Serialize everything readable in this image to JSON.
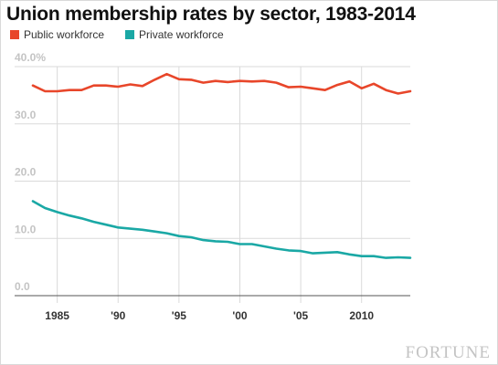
{
  "chart_data": {
    "type": "line",
    "title": "Union membership rates by sector, 1983-2014",
    "xlabel": "",
    "ylabel": "",
    "xlim": [
      1981.5,
      2014
    ],
    "ylim": [
      0,
      40
    ],
    "y_ticks": [
      {
        "value": 0,
        "label": "0.0"
      },
      {
        "value": 10,
        "label": "10.0"
      },
      {
        "value": 20,
        "label": "20.0"
      },
      {
        "value": 30,
        "label": "30.0"
      },
      {
        "value": 40,
        "label": "40.0%"
      }
    ],
    "x_ticks": [
      {
        "value": 1985,
        "label": "1985"
      },
      {
        "value": 1990,
        "label": "'90"
      },
      {
        "value": 1995,
        "label": "'95"
      },
      {
        "value": 2000,
        "label": "'00"
      },
      {
        "value": 2005,
        "label": "'05"
      },
      {
        "value": 2010,
        "label": "2010"
      }
    ],
    "grid": {
      "horizontal": true,
      "vertical": true
    },
    "legend_position": "top-left",
    "x": [
      1983,
      1984,
      1985,
      1986,
      1987,
      1988,
      1989,
      1990,
      1991,
      1992,
      1993,
      1994,
      1995,
      1996,
      1997,
      1998,
      1999,
      2000,
      2001,
      2002,
      2003,
      2004,
      2005,
      2006,
      2007,
      2008,
      2009,
      2010,
      2011,
      2012,
      2013,
      2014
    ],
    "series": [
      {
        "name": "Public workforce",
        "color": "#e8462a",
        "values": [
          36.7,
          35.7,
          35.7,
          35.9,
          35.9,
          36.7,
          36.7,
          36.5,
          36.9,
          36.6,
          37.7,
          38.7,
          37.8,
          37.7,
          37.2,
          37.5,
          37.3,
          37.5,
          37.4,
          37.5,
          37.2,
          36.4,
          36.5,
          36.2,
          35.9,
          36.8,
          37.4,
          36.2,
          37.0,
          35.9,
          35.3,
          35.7
        ]
      },
      {
        "name": "Private workforce",
        "color": "#1aa8a5",
        "values": [
          16.5,
          15.3,
          14.6,
          14.0,
          13.5,
          12.9,
          12.4,
          11.9,
          11.7,
          11.5,
          11.2,
          10.9,
          10.4,
          10.2,
          9.7,
          9.5,
          9.4,
          9.0,
          9.0,
          8.6,
          8.2,
          7.9,
          7.8,
          7.4,
          7.5,
          7.6,
          7.2,
          6.9,
          6.9,
          6.6,
          6.7,
          6.6
        ]
      }
    ]
  },
  "source_logo": "FORTUNE"
}
